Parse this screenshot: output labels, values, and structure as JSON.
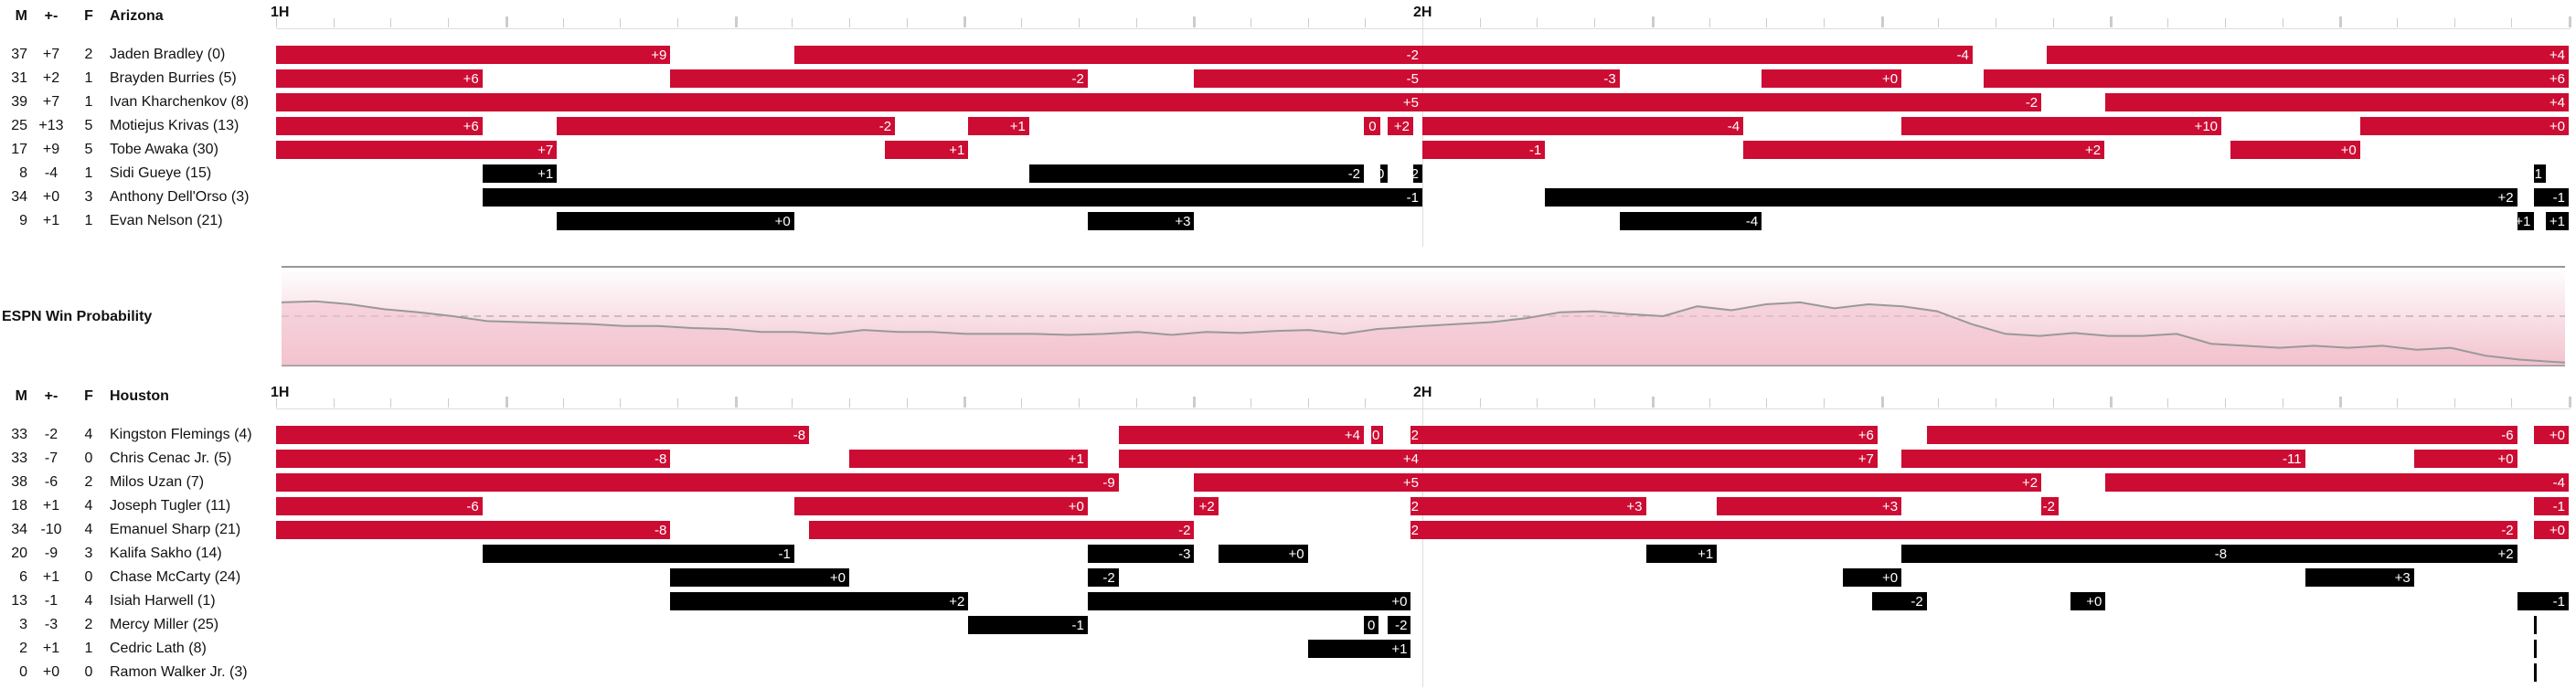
{
  "colors": {
    "on_court": "#cc0c33",
    "bench_run": "#000000",
    "wp_line": "#999999",
    "wp_fill": "#f2c3cf"
  },
  "headers": {
    "m": "M",
    "pm": "+-",
    "f": "F"
  },
  "half_labels": {
    "first": "1H",
    "second": "2H"
  },
  "win_prob_label": "ESPN Win Probability",
  "teams": [
    {
      "name": "Arizona",
      "players": [
        {
          "m": "37",
          "pm": "+7",
          "f": "2",
          "name": "Jaden Bradley (0)",
          "stints": [
            {
              "s": 0.0,
              "e": 0.344,
              "c": "red",
              "label": "+9"
            },
            {
              "s": 0.452,
              "e": 1.0,
              "c": "red",
              "label": "-2"
            },
            {
              "s": 1.0,
              "e": 1.48,
              "c": "red",
              "label": "-4"
            },
            {
              "s": 1.545,
              "e": 2.0,
              "c": "red",
              "label": "+4"
            }
          ]
        },
        {
          "m": "31",
          "pm": "+2",
          "f": "1",
          "name": "Brayden Burries (5)",
          "stints": [
            {
              "s": 0.0,
              "e": 0.18,
              "c": "red",
              "label": "+6"
            },
            {
              "s": 0.344,
              "e": 0.708,
              "c": "red",
              "label": "-2"
            },
            {
              "s": 0.801,
              "e": 1.0,
              "c": "red",
              "label": "-5"
            },
            {
              "s": 1.0,
              "e": 1.172,
              "c": "red",
              "label": "-3"
            },
            {
              "s": 1.296,
              "e": 1.418,
              "c": "red",
              "label": "+0"
            },
            {
              "s": 1.49,
              "e": 2.0,
              "c": "red",
              "label": "+6"
            }
          ]
        },
        {
          "m": "39",
          "pm": "+7",
          "f": "1",
          "name": "Ivan Kharchenkov (8)",
          "stints": [
            {
              "s": 0.0,
              "e": 1.0,
              "c": "red",
              "label": "+5"
            },
            {
              "s": 1.0,
              "e": 1.54,
              "c": "red",
              "label": "-2"
            },
            {
              "s": 1.596,
              "e": 2.0,
              "c": "red",
              "label": "+4"
            }
          ]
        },
        {
          "m": "25",
          "pm": "+13",
          "f": "5",
          "name": "Motiejus Krivas (13)",
          "stints": [
            {
              "s": 0.0,
              "e": 0.18,
              "c": "red",
              "label": "+6"
            },
            {
              "s": 0.245,
              "e": 0.54,
              "c": "red",
              "label": "-2"
            },
            {
              "s": 0.604,
              "e": 0.657,
              "c": "red",
              "label": "+1"
            },
            {
              "s": 0.949,
              "e": 0.963,
              "c": "red",
              "label": "0"
            },
            {
              "s": 0.97,
              "e": 0.992,
              "c": "red",
              "label": "+2"
            },
            {
              "s": 1.0,
              "e": 1.28,
              "c": "red",
              "label": "-4"
            },
            {
              "s": 1.418,
              "e": 1.697,
              "c": "red",
              "label": "+10"
            },
            {
              "s": 1.818,
              "e": 2.0,
              "c": "red",
              "label": "+0"
            }
          ]
        },
        {
          "m": "17",
          "pm": "+9",
          "f": "5",
          "name": "Tobe Awaka (30)",
          "stints": [
            {
              "s": 0.0,
              "e": 0.245,
              "c": "red",
              "label": "+7"
            },
            {
              "s": 0.531,
              "e": 0.604,
              "c": "red",
              "label": "+1"
            },
            {
              "s": 1.0,
              "e": 1.107,
              "c": "red",
              "label": "-1"
            },
            {
              "s": 1.28,
              "e": 1.595,
              "c": "red",
              "label": "+2"
            },
            {
              "s": 1.705,
              "e": 1.818,
              "c": "red",
              "label": "+0"
            }
          ]
        },
        {
          "m": "8",
          "pm": "-4",
          "f": "1",
          "name": "Sidi Gueye (15)",
          "stints": [
            {
              "s": 0.18,
              "e": 0.245,
              "c": "black",
              "label": "+1"
            },
            {
              "s": 0.657,
              "e": 0.949,
              "c": "black",
              "label": "-2"
            },
            {
              "s": 0.963,
              "e": 0.97,
              "c": "black",
              "label": "0"
            },
            {
              "s": 0.992,
              "e": 1.0,
              "c": "black",
              "label": "-2"
            },
            {
              "s": 1.97,
              "e": 1.98,
              "c": "black",
              "label": "1"
            }
          ]
        },
        {
          "m": "34",
          "pm": "+0",
          "f": "3",
          "name": "Anthony Dell'Orso (3)",
          "stints": [
            {
              "s": 0.18,
              "e": 1.0,
              "c": "black",
              "label": "-1"
            },
            {
              "s": 1.107,
              "e": 1.955,
              "c": "black",
              "label": "+2"
            },
            {
              "s": 1.97,
              "e": 2.0,
              "c": "black",
              "label": "-1"
            }
          ]
        },
        {
          "m": "9",
          "pm": "+1",
          "f": "1",
          "name": "Evan Nelson (21)",
          "stints": [
            {
              "s": 0.245,
              "e": 0.452,
              "c": "black",
              "label": "+0"
            },
            {
              "s": 0.708,
              "e": 0.801,
              "c": "black",
              "label": "+3"
            },
            {
              "s": 1.172,
              "e": 1.296,
              "c": "black",
              "label": "-4"
            },
            {
              "s": 1.955,
              "e": 1.97,
              "c": "black",
              "label": "+1"
            },
            {
              "s": 1.98,
              "e": 2.0,
              "c": "black",
              "label": "+1"
            }
          ]
        }
      ]
    },
    {
      "name": "Houston",
      "players": [
        {
          "m": "33",
          "pm": "-2",
          "f": "4",
          "name": "Kingston Flemings (4)",
          "stints": [
            {
              "s": 0.0,
              "e": 0.465,
              "c": "red",
              "label": "-8"
            },
            {
              "s": 0.735,
              "e": 0.949,
              "c": "red",
              "label": "+4"
            },
            {
              "s": 0.955,
              "e": 0.966,
              "c": "red",
              "label": "0"
            },
            {
              "s": 0.99,
              "e": 1.0,
              "c": "red",
              "label": "-2"
            },
            {
              "s": 1.0,
              "e": 1.397,
              "c": "red",
              "label": "+6"
            },
            {
              "s": 1.44,
              "e": 1.955,
              "c": "red",
              "label": "-6"
            },
            {
              "s": 1.97,
              "e": 2.0,
              "c": "red",
              "label": "+0"
            }
          ]
        },
        {
          "m": "33",
          "pm": "-7",
          "f": "0",
          "name": "Chris Cenac Jr. (5)",
          "stints": [
            {
              "s": 0.0,
              "e": 0.344,
              "c": "red",
              "label": "-8"
            },
            {
              "s": 0.5,
              "e": 0.708,
              "c": "red",
              "label": "+1"
            },
            {
              "s": 0.735,
              "e": 1.0,
              "c": "red",
              "label": "+4"
            },
            {
              "s": 1.0,
              "e": 1.397,
              "c": "red",
              "label": "+7"
            },
            {
              "s": 1.418,
              "e": 1.77,
              "c": "red",
              "label": "-11"
            },
            {
              "s": 1.865,
              "e": 1.955,
              "c": "red",
              "label": "+0"
            }
          ]
        },
        {
          "m": "38",
          "pm": "-6",
          "f": "2",
          "name": "Milos Uzan (7)",
          "stints": [
            {
              "s": 0.0,
              "e": 0.735,
              "c": "red",
              "label": "-9"
            },
            {
              "s": 0.801,
              "e": 1.0,
              "c": "red",
              "label": "+5"
            },
            {
              "s": 1.0,
              "e": 1.54,
              "c": "red",
              "label": "+2"
            },
            {
              "s": 1.596,
              "e": 2.0,
              "c": "red",
              "label": "-4"
            }
          ]
        },
        {
          "m": "18",
          "pm": "+1",
          "f": "4",
          "name": "Joseph Tugler (11)",
          "stints": [
            {
              "s": 0.0,
              "e": 0.18,
              "c": "red",
              "label": "-6"
            },
            {
              "s": 0.452,
              "e": 0.708,
              "c": "red",
              "label": "+0"
            },
            {
              "s": 0.801,
              "e": 0.822,
              "c": "red",
              "label": "+2"
            },
            {
              "s": 0.99,
              "e": 1.0,
              "c": "red",
              "label": "-2"
            },
            {
              "s": 1.0,
              "e": 1.195,
              "c": "red",
              "label": "+3"
            },
            {
              "s": 1.257,
              "e": 1.418,
              "c": "red",
              "label": "+3"
            },
            {
              "s": 1.54,
              "e": 1.555,
              "c": "red",
              "label": "-2"
            },
            {
              "s": 1.97,
              "e": 2.0,
              "c": "red",
              "label": "-1"
            }
          ]
        },
        {
          "m": "34",
          "pm": "-10",
          "f": "4",
          "name": "Emanuel Sharp (21)",
          "stints": [
            {
              "s": 0.0,
              "e": 0.344,
              "c": "red",
              "label": "-8"
            },
            {
              "s": 0.465,
              "e": 0.801,
              "c": "red",
              "label": "-2"
            },
            {
              "s": 0.99,
              "e": 1.0,
              "c": "red",
              "label": "-2"
            },
            {
              "s": 1.0,
              "e": 1.955,
              "c": "red",
              "label": "-2"
            },
            {
              "s": 1.97,
              "e": 2.0,
              "c": "red",
              "label": "+0"
            }
          ]
        },
        {
          "m": "20",
          "pm": "-9",
          "f": "3",
          "name": "Kalifa Sakho (14)",
          "stints": [
            {
              "s": 0.18,
              "e": 0.452,
              "c": "black",
              "label": "-1"
            },
            {
              "s": 0.708,
              "e": 0.801,
              "c": "black",
              "label": "-3"
            },
            {
              "s": 0.822,
              "e": 0.9,
              "c": "black",
              "label": "+0"
            },
            {
              "s": 1.195,
              "e": 1.257,
              "c": "black",
              "label": "+1"
            },
            {
              "s": 1.418,
              "e": 1.705,
              "c": "black",
              "label": "-8"
            },
            {
              "s": 1.705,
              "e": 1.955,
              "c": "black",
              "label": "+2"
            }
          ]
        },
        {
          "m": "6",
          "pm": "+1",
          "f": "0",
          "name": "Chase McCarty (24)",
          "stints": [
            {
              "s": 0.344,
              "e": 0.5,
              "c": "black",
              "label": "+0"
            },
            {
              "s": 0.708,
              "e": 0.735,
              "c": "black",
              "label": "-2"
            },
            {
              "s": 1.367,
              "e": 1.418,
              "c": "black",
              "label": "+0"
            },
            {
              "s": 1.77,
              "e": 1.865,
              "c": "black",
              "label": "+3"
            }
          ]
        },
        {
          "m": "13",
          "pm": "-1",
          "f": "4",
          "name": "Isiah Harwell (1)",
          "stints": [
            {
              "s": 0.344,
              "e": 0.604,
              "c": "black",
              "label": "+2"
            },
            {
              "s": 0.708,
              "e": 0.99,
              "c": "black",
              "label": "+0"
            },
            {
              "s": 1.392,
              "e": 1.44,
              "c": "black",
              "label": "-2"
            },
            {
              "s": 1.565,
              "e": 1.596,
              "c": "black",
              "label": "+0"
            },
            {
              "s": 1.955,
              "e": 2.0,
              "c": "black",
              "label": "-1"
            }
          ]
        },
        {
          "m": "3",
          "pm": "-3",
          "f": "2",
          "name": "Mercy Miller (25)",
          "stints": [
            {
              "s": 0.604,
              "e": 0.708,
              "c": "black",
              "label": "-1"
            },
            {
              "s": 0.949,
              "e": 0.962,
              "c": "black",
              "label": "0"
            },
            {
              "s": 0.97,
              "e": 0.99,
              "c": "black",
              "label": "-2"
            },
            {
              "s": 1.97,
              "e": 1.972,
              "c": "black",
              "label": ""
            }
          ]
        },
        {
          "m": "2",
          "pm": "+1",
          "f": "1",
          "name": "Cedric Lath (8)",
          "stints": [
            {
              "s": 0.9,
              "e": 0.99,
              "c": "black",
              "label": "+1"
            },
            {
              "s": 1.97,
              "e": 1.972,
              "c": "black",
              "label": ""
            }
          ]
        },
        {
          "m": "0",
          "pm": "+0",
          "f": "0",
          "name": "Ramon Walker Jr. (3)",
          "stints": [
            {
              "s": 1.97,
              "e": 1.972,
              "c": "black",
              "label": ""
            }
          ]
        }
      ]
    }
  ],
  "chart_data": {
    "type": "line",
    "title": "ESPN Win Probability",
    "xlabel": "",
    "ylabel": "",
    "ylim": [
      0,
      1
    ],
    "reference_line": 0.5,
    "halves": [
      "1H",
      "2H"
    ],
    "x": [
      0.0,
      0.03,
      0.06,
      0.09,
      0.12,
      0.15,
      0.18,
      0.21,
      0.24,
      0.27,
      0.3,
      0.33,
      0.36,
      0.39,
      0.42,
      0.45,
      0.48,
      0.51,
      0.54,
      0.57,
      0.6,
      0.63,
      0.66,
      0.69,
      0.72,
      0.75,
      0.78,
      0.81,
      0.84,
      0.87,
      0.9,
      0.93,
      0.96,
      1.0,
      1.03,
      1.06,
      1.09,
      1.12,
      1.15,
      1.18,
      1.21,
      1.24,
      1.27,
      1.3,
      1.33,
      1.36,
      1.39,
      1.42,
      1.45,
      1.48,
      1.51,
      1.54,
      1.57,
      1.6,
      1.63,
      1.66,
      1.69,
      1.72,
      1.75,
      1.78,
      1.81,
      1.84,
      1.87,
      1.9,
      1.93,
      1.96,
      2.0
    ],
    "series": [
      {
        "values": [
          0.36,
          0.35,
          0.38,
          0.43,
          0.46,
          0.5,
          0.55,
          0.56,
          0.57,
          0.58,
          0.6,
          0.6,
          0.62,
          0.63,
          0.66,
          0.66,
          0.68,
          0.64,
          0.66,
          0.66,
          0.68,
          0.68,
          0.68,
          0.69,
          0.68,
          0.66,
          0.69,
          0.66,
          0.67,
          0.65,
          0.64,
          0.68,
          0.63,
          0.6,
          0.58,
          0.56,
          0.52,
          0.46,
          0.45,
          0.48,
          0.5,
          0.4,
          0.44,
          0.38,
          0.36,
          0.42,
          0.38,
          0.4,
          0.45,
          0.58,
          0.68,
          0.7,
          0.67,
          0.7,
          0.7,
          0.68,
          0.78,
          0.8,
          0.82,
          0.8,
          0.82,
          0.8,
          0.84,
          0.82,
          0.9,
          0.94,
          0.97
        ]
      }
    ]
  }
}
